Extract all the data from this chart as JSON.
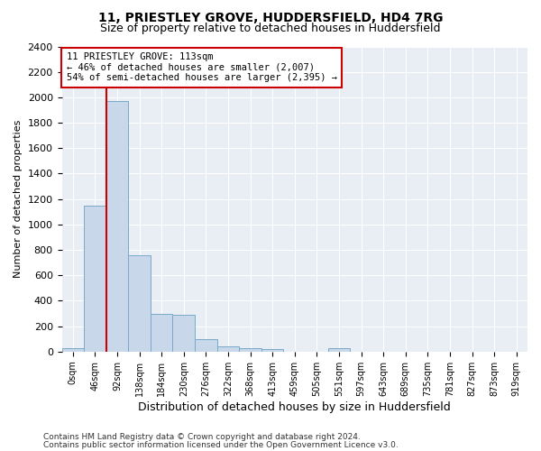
{
  "title_line1": "11, PRIESTLEY GROVE, HUDDERSFIELD, HD4 7RG",
  "title_line2": "Size of property relative to detached houses in Huddersfield",
  "xlabel": "Distribution of detached houses by size in Huddersfield",
  "ylabel": "Number of detached properties",
  "footer_line1": "Contains HM Land Registry data © Crown copyright and database right 2024.",
  "footer_line2": "Contains public sector information licensed under the Open Government Licence v3.0.",
  "bar_labels": [
    "0sqm",
    "46sqm",
    "92sqm",
    "138sqm",
    "184sqm",
    "230sqm",
    "276sqm",
    "322sqm",
    "368sqm",
    "413sqm",
    "459sqm",
    "505sqm",
    "551sqm",
    "597sqm",
    "643sqm",
    "689sqm",
    "735sqm",
    "781sqm",
    "827sqm",
    "873sqm",
    "919sqm"
  ],
  "bar_values": [
    30,
    1150,
    1970,
    760,
    300,
    290,
    100,
    40,
    30,
    20,
    0,
    0,
    25,
    0,
    0,
    0,
    0,
    0,
    0,
    0,
    0
  ],
  "bar_color": "#c8d8ea",
  "bar_edge_color": "#7aaac8",
  "ylim_max": 2400,
  "ytick_step": 200,
  "property_bin_index": 2,
  "red_line_color": "#cc0000",
  "annotation_text": "11 PRIESTLEY GROVE: 113sqm\n← 46% of detached houses are smaller (2,007)\n54% of semi-detached houses are larger (2,395) →",
  "annotation_box_facecolor": "#ffffff",
  "annotation_box_edgecolor": "#cc0000",
  "figure_facecolor": "#ffffff",
  "plot_facecolor": "#e8eef4",
  "grid_color": "#ffffff",
  "title1_fontsize": 10,
  "title2_fontsize": 9,
  "ylabel_fontsize": 8,
  "xlabel_fontsize": 9,
  "tick_fontsize": 8,
  "xtick_fontsize": 7,
  "annot_fontsize": 7.5,
  "footer_fontsize": 6.5
}
